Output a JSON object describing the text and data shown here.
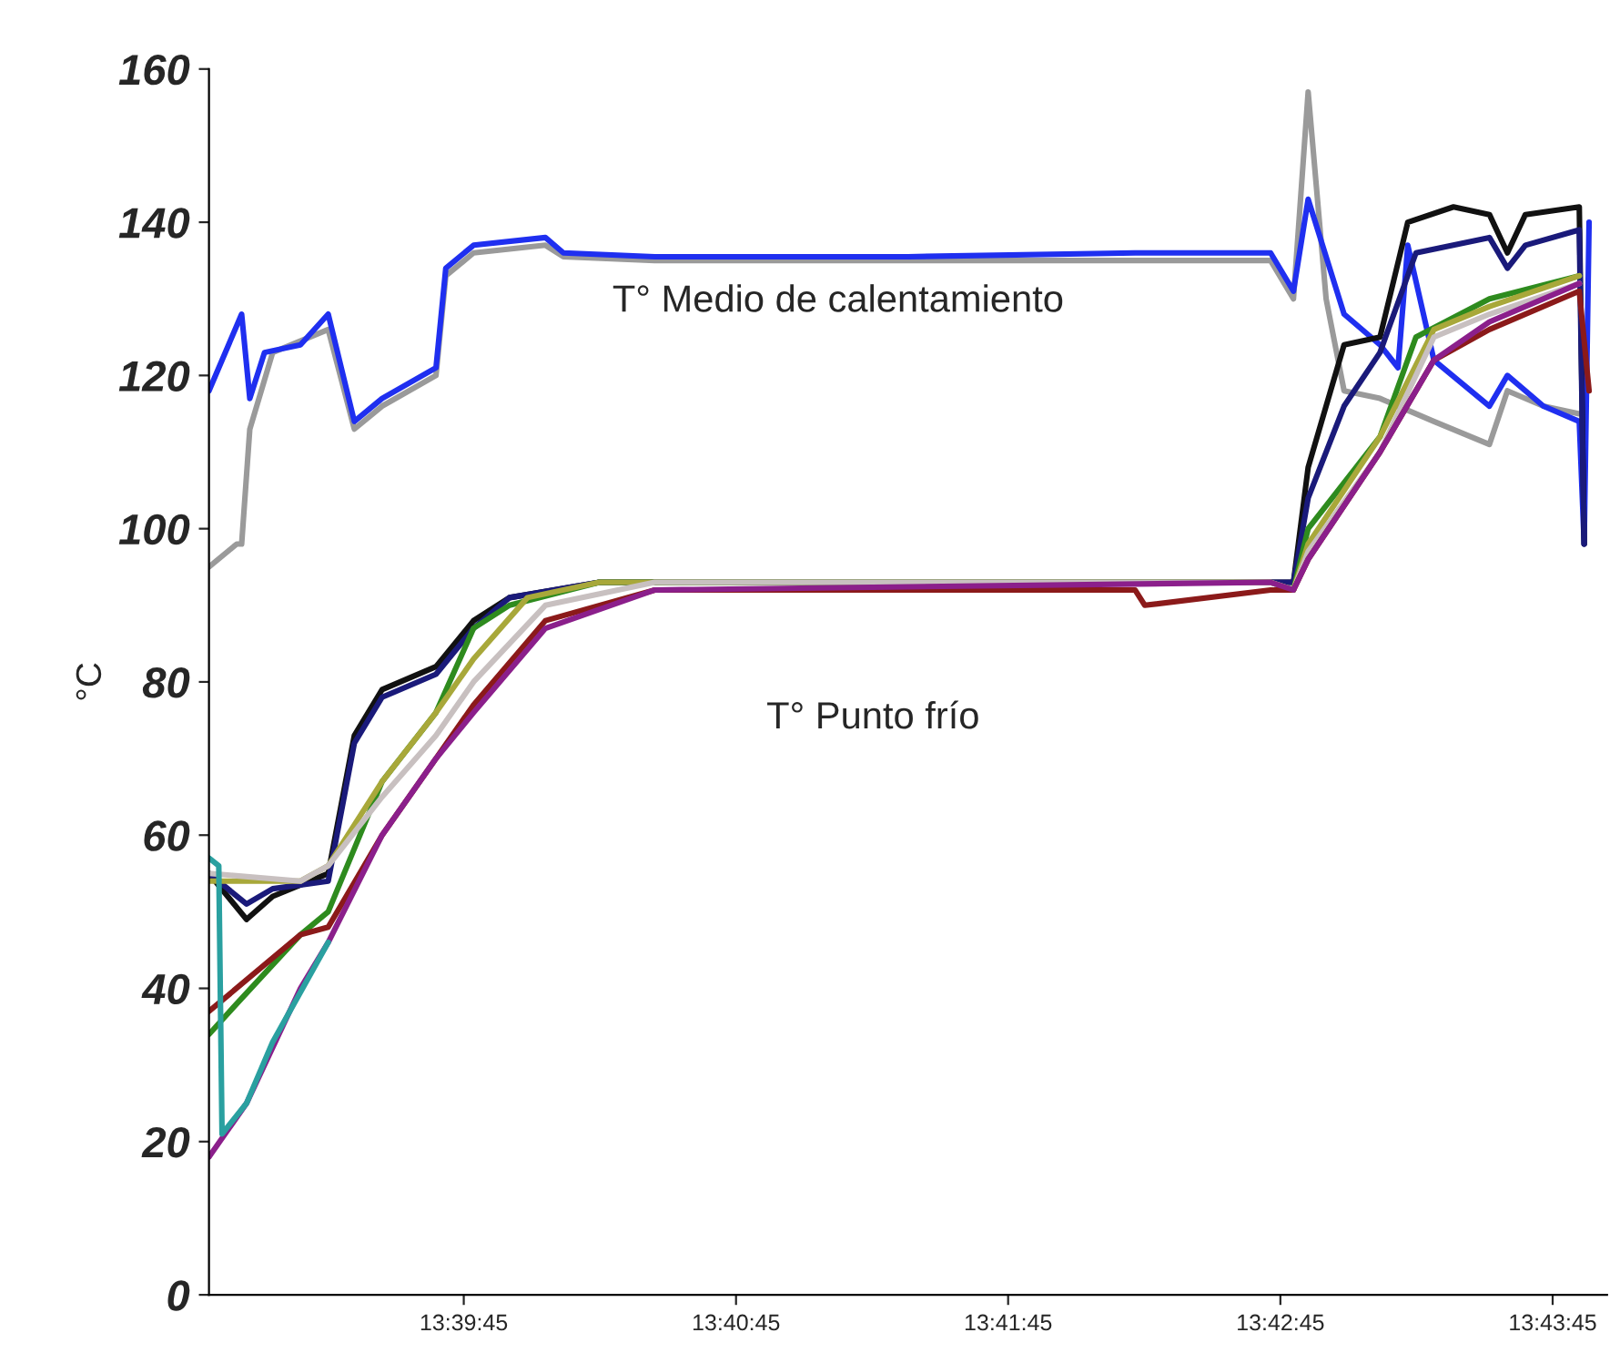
{
  "chart_data": {
    "type": "line",
    "ylabel": "°C",
    "xlim": [
      13.6469,
      13.7325
    ],
    "ylim": [
      0,
      160
    ],
    "xticks": [
      {
        "value": 13.6625,
        "label": "13:39:45"
      },
      {
        "value": 13.67917,
        "label": "13:40:45"
      },
      {
        "value": 13.69583,
        "label": "13:41:45"
      },
      {
        "value": 13.7125,
        "label": "13:42:45"
      },
      {
        "value": 13.72917,
        "label": "13:43:45"
      }
    ],
    "yticks": [
      0,
      20,
      40,
      60,
      80,
      100,
      120,
      140,
      160
    ],
    "grid": false,
    "legend": false,
    "marker": "none",
    "line_style": "solid",
    "annotations": [
      "T° Medio de calentamiento",
      "T° Punto frío"
    ],
    "series": [
      {
        "color": "#9a9a9a",
        "x": [
          13.6469,
          13.6486,
          13.6489,
          13.6494,
          13.6508,
          13.6542,
          13.6558,
          13.6575,
          13.6608,
          13.6614,
          13.6631,
          13.6675,
          13.6686,
          13.6742,
          13.6897,
          13.7036,
          13.7119,
          13.7133,
          13.7142,
          13.7153,
          13.7164,
          13.7186,
          13.7219,
          13.7253,
          13.7264,
          13.7286,
          13.7308
        ],
        "values": [
          95,
          98,
          98,
          113,
          123,
          126,
          113,
          116,
          120,
          133,
          136,
          137,
          135.5,
          135,
          135,
          135,
          135,
          130,
          157,
          130,
          118,
          117,
          114,
          111,
          118,
          116,
          115
        ]
      },
      {
        "color": "#1f2ff0",
        "x": [
          13.6469,
          13.6481,
          13.6489,
          13.6494,
          13.6503,
          13.6525,
          13.6542,
          13.6558,
          13.6575,
          13.6608,
          13.6614,
          13.6631,
          13.6675,
          13.6686,
          13.6742,
          13.6897,
          13.7036,
          13.7119,
          13.7133,
          13.7142,
          13.7164,
          13.7186,
          13.7197,
          13.7203,
          13.7219,
          13.7253,
          13.7264,
          13.7286,
          13.7308,
          13.7311,
          13.7314
        ],
        "values": [
          118,
          124,
          128,
          117,
          123,
          124,
          128,
          114,
          117,
          121,
          134,
          137,
          138,
          136,
          135.5,
          135.5,
          136,
          136,
          131,
          143,
          128,
          124,
          121,
          137,
          122,
          116,
          120,
          116,
          114,
          98,
          140
        ]
      },
      {
        "color": "#111111",
        "x": [
          13.6469,
          13.6492,
          13.6508,
          13.6542,
          13.6558,
          13.6575,
          13.6608,
          13.6631,
          13.6653,
          13.6708,
          13.7119,
          13.7133,
          13.7142,
          13.7164,
          13.7186,
          13.7203,
          13.7231,
          13.7253,
          13.7264,
          13.7275,
          13.7308,
          13.7311
        ],
        "values": [
          55,
          49,
          52,
          55,
          73,
          79,
          82,
          88,
          91,
          93,
          93,
          93,
          108,
          124,
          125,
          140,
          142,
          141,
          136,
          141,
          142,
          98
        ]
      },
      {
        "color": "#1a1a7a",
        "x": [
          13.6469,
          13.6492,
          13.6508,
          13.6542,
          13.6558,
          13.6575,
          13.6608,
          13.6631,
          13.6653,
          13.6708,
          13.7119,
          13.7133,
          13.7142,
          13.7164,
          13.7186,
          13.7208,
          13.7253,
          13.7264,
          13.7275,
          13.7308,
          13.7311
        ],
        "values": [
          55,
          51,
          53,
          54,
          72,
          78,
          81,
          87,
          91,
          93,
          93,
          93,
          104,
          116,
          123,
          136,
          138,
          134,
          137,
          139,
          98
        ]
      },
      {
        "color": "#2e8b1e",
        "x": [
          13.6469,
          13.6486,
          13.6525,
          13.6542,
          13.6575,
          13.6608,
          13.6631,
          13.6653,
          13.6708,
          13.7119,
          13.7133,
          13.7142,
          13.7186,
          13.7208,
          13.7253,
          13.7308
        ],
        "values": [
          34,
          38,
          47,
          50,
          67,
          76,
          87,
          90,
          93,
          93,
          92,
          100,
          112,
          125,
          130,
          133
        ]
      },
      {
        "color": "#a8a83a",
        "x": [
          13.6469,
          13.6525,
          13.6542,
          13.6575,
          13.6608,
          13.6631,
          13.6664,
          13.6708,
          13.7119,
          13.7133,
          13.7142,
          13.7186,
          13.7219,
          13.7253,
          13.7308
        ],
        "values": [
          54,
          54,
          56,
          67,
          76,
          83,
          91,
          93,
          93,
          92,
          98,
          112,
          126,
          129,
          133
        ]
      },
      {
        "color": "#c8c0c0",
        "x": [
          13.6469,
          13.6525,
          13.6542,
          13.6575,
          13.6608,
          13.6631,
          13.6675,
          13.6742,
          13.7119,
          13.7133,
          13.7142,
          13.7186,
          13.7219,
          13.7253,
          13.7308
        ],
        "values": [
          55,
          54,
          56,
          65,
          73,
          80,
          90,
          93,
          93,
          92,
          97,
          110,
          125,
          128,
          132
        ]
      },
      {
        "color": "#8b1a1a",
        "x": [
          13.6469,
          13.6525,
          13.6542,
          13.6575,
          13.6608,
          13.6631,
          13.6675,
          13.6742,
          13.7036,
          13.7042,
          13.7119,
          13.7133,
          13.7142,
          13.7186,
          13.7219,
          13.7253,
          13.7308,
          13.7314
        ],
        "values": [
          37,
          47,
          48,
          60,
          70,
          77,
          88,
          92,
          92,
          90,
          92,
          92,
          96,
          110,
          122,
          126,
          131,
          118
        ]
      },
      {
        "color": "#8b1f8b",
        "x": [
          13.6469,
          13.6492,
          13.6525,
          13.6542,
          13.6575,
          13.6608,
          13.6631,
          13.6675,
          13.6742,
          13.7119,
          13.7133,
          13.7142,
          13.7186,
          13.7219,
          13.7253,
          13.7308
        ],
        "values": [
          18,
          25,
          40,
          46,
          60,
          70,
          76,
          87,
          92,
          93,
          92,
          96,
          110,
          122,
          127,
          132
        ]
      },
      {
        "color": "#2aa0a0",
        "x": [
          13.6469,
          13.6475,
          13.6477,
          13.6492,
          13.6508,
          13.6542
        ],
        "values": [
          57,
          56,
          21,
          25,
          33,
          46
        ]
      }
    ]
  }
}
